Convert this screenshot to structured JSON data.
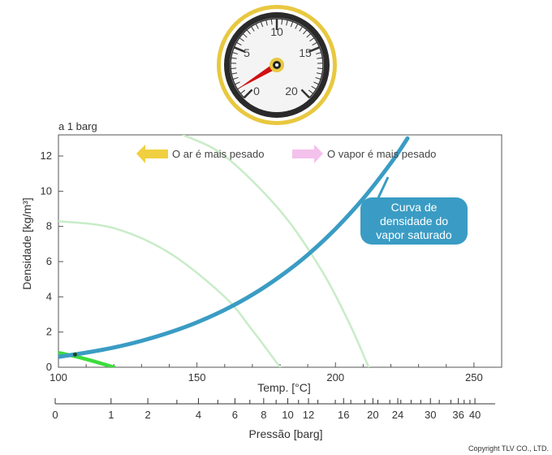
{
  "condition_label": "a 1 barg",
  "gauge": {
    "numbers": [
      "0",
      "5",
      "10",
      "15",
      "20"
    ],
    "value": 1
  },
  "legend": {
    "air_heavier": "O ar é mais pesado",
    "vapor_heavier": "O vapor é mais pesado"
  },
  "callout": {
    "lines": [
      "Curva de",
      "densidade do",
      "vapor saturado"
    ]
  },
  "copyright": "Copyright TLV CO., LTD.",
  "colors": {
    "saturated_curve": "#3a9cc4",
    "air_curve": "#3cdc3c",
    "faint_curve": "#c8ecc8",
    "callout_bg": "#3a9cc4",
    "arrow_air": "#f0d040",
    "arrow_vapor": "#f4c0ec",
    "gauge_ring": "#e8c840",
    "needle": "#d01010"
  },
  "chart_data": {
    "type": "line",
    "title": "",
    "xlabel": "Temp. [°C]",
    "ylabel": "Densidade [kg/m³]",
    "xlim": [
      100,
      260
    ],
    "ylim": [
      0,
      13.2
    ],
    "x_ticks": [
      100,
      150,
      200,
      250
    ],
    "y_ticks": [
      0,
      2,
      4,
      6,
      8,
      10,
      12
    ],
    "series": [
      {
        "key": "saturated",
        "x": [
          100,
          110,
          120,
          130,
          140,
          150,
          160,
          170,
          180,
          190,
          200,
          210,
          220,
          226
        ],
        "y": [
          0.59,
          0.83,
          1.12,
          1.5,
          1.97,
          2.55,
          3.26,
          4.12,
          5.16,
          6.39,
          7.86,
          9.58,
          11.6,
          13.0
        ]
      },
      {
        "key": "air",
        "x": [
          98,
          106,
          114,
          120
        ],
        "y": [
          0.88,
          0.62,
          0.28,
          0.0
        ]
      },
      {
        "key": "faint1",
        "x": [
          100,
          120,
          140,
          160,
          170,
          180
        ],
        "y": [
          8.3,
          7.9,
          6.5,
          4.0,
          2.1,
          0.0
        ]
      },
      {
        "key": "faint2",
        "x": [
          145,
          160,
          180,
          195,
          205,
          212
        ],
        "y": [
          13.2,
          12.0,
          8.9,
          5.5,
          2.5,
          0.0
        ]
      }
    ],
    "pressure_axis": {
      "label": "Pressão",
      "unit": "[barg]",
      "labeled_ticks": [
        "0",
        "1",
        "2",
        "4",
        "6",
        "8",
        "10",
        "12",
        "16",
        "20",
        "24",
        "30",
        "36",
        "40"
      ],
      "tick_temps": [
        100,
        120.2,
        133.5,
        151.8,
        165,
        175.4,
        184.1,
        191.6,
        204.3,
        214.9,
        223.9,
        235.7,
        245.8,
        251.8
      ],
      "minor_tick_temps": [
        144,
        158.8,
        170.4,
        179.9,
        188,
        195,
        201.3,
        206.9,
        212,
        216.7,
        221,
        225,
        228.7,
        232.2,
        238.9,
        243.1,
        247.9,
        250
      ]
    }
  }
}
